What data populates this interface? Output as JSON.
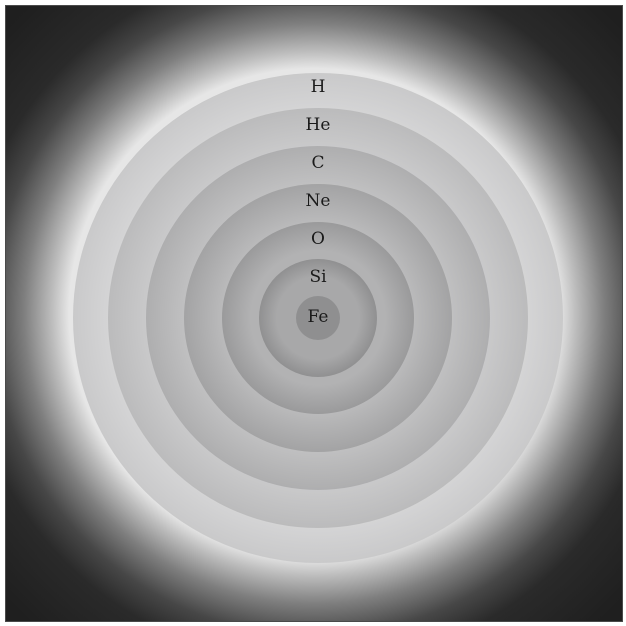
{
  "shells": [
    {
      "element": "H",
      "fill": "#e0e0e1",
      "edge": "#c9c9ca"
    },
    {
      "element": "He",
      "fill": "#d2d2d3",
      "edge": "#bbbbbc"
    },
    {
      "element": "C",
      "fill": "#c6c6c7",
      "edge": "#aeaeaf"
    },
    {
      "element": "Ne",
      "fill": "#bbbbbc",
      "edge": "#a3a3a4"
    },
    {
      "element": "O",
      "fill": "#b2b2b3",
      "edge": "#9a9a9b"
    },
    {
      "element": "Si",
      "fill": "#a8a8a9",
      "edge": "#909091"
    },
    {
      "element": "Fe",
      "fill": "#8f8f90",
      "edge": "#8f8f90"
    }
  ],
  "colors": {
    "background_dark": "#1f1f1f",
    "glow": "#ffffff",
    "label": "#1a1a1a"
  }
}
